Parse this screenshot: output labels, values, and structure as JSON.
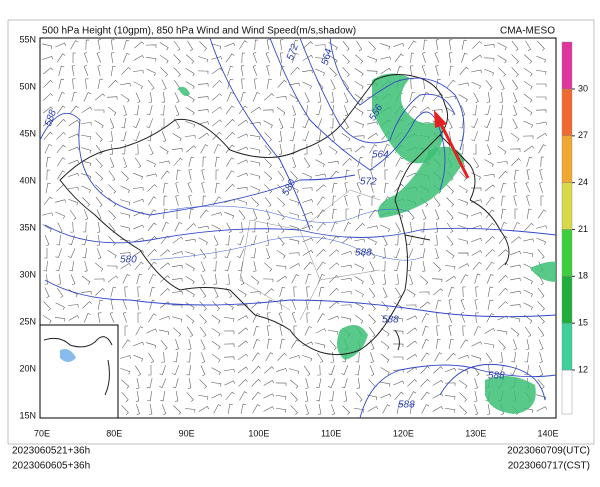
{
  "header": {
    "title": "500 hPa Height (10gpm), 850 hPa Wind and Wind Speed(m/s,shadow)",
    "model": "CMA-MESO"
  },
  "latitude_labels": [
    "55N",
    "50N",
    "45N",
    "40N",
    "35N",
    "30N",
    "25N",
    "20N",
    "15N"
  ],
  "longitude_labels": [
    "70E",
    "80E",
    "90E",
    "100E",
    "110E",
    "120E",
    "130E",
    "140E"
  ],
  "contour_labels": [
    "572",
    "564",
    "556",
    "588",
    "564",
    "572",
    "580",
    "580",
    "588",
    "588",
    "588",
    "588"
  ],
  "colorbar": {
    "ticks": [
      30,
      27,
      24,
      21,
      18,
      15,
      12
    ],
    "colors": [
      "#ffffff",
      "#3fcf9a",
      "#1fae3c",
      "#3ccf3c",
      "#d7d84a",
      "#f0a832",
      "#ef6a30",
      "#e0339c"
    ]
  },
  "footer": {
    "init_utc": "2023060521+36h",
    "init_cst": "2023060605+36h",
    "valid_utc": "2023060709(UTC)",
    "valid_cst": "2023060717(CST)"
  }
}
